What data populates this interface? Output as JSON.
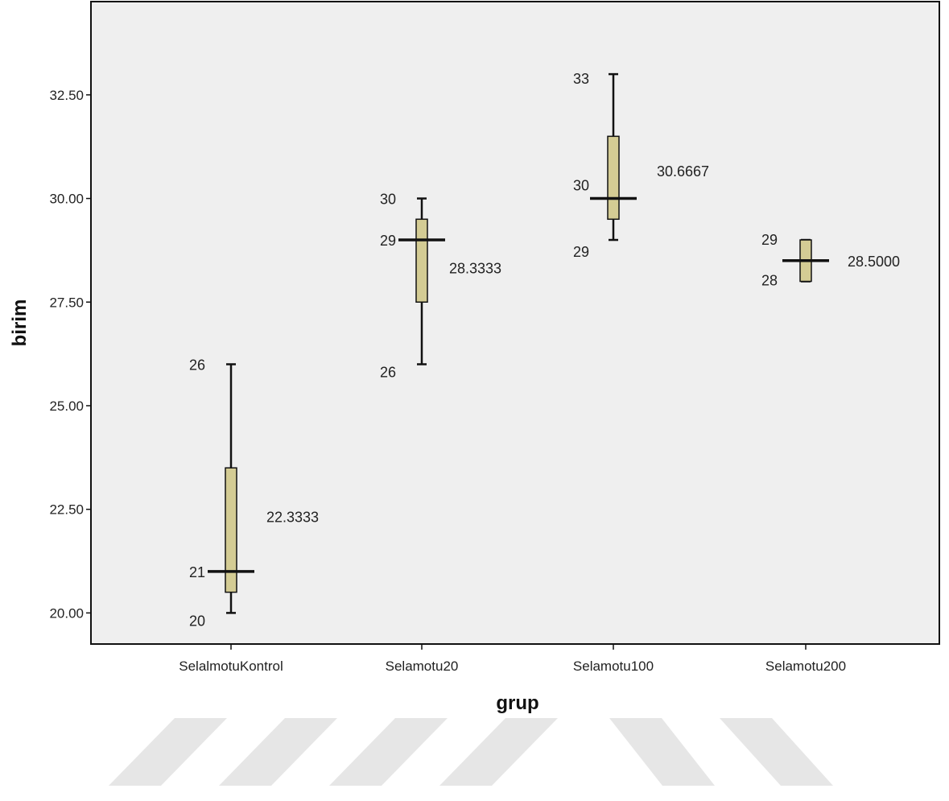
{
  "colors": {
    "plot_background": "#efefef",
    "box_fill": "#d4cc94",
    "line": "#111111",
    "watermark": "#e6e6e6"
  },
  "chart_data": {
    "type": "boxplot",
    "title": "",
    "xlabel": "grup",
    "ylabel": "birim",
    "ylim": [
      19.25,
      34.75
    ],
    "yticks": [
      "20.00",
      "22.50",
      "25.00",
      "27.50",
      "30.00",
      "32.50"
    ],
    "ytick_values": [
      20,
      22.5,
      25,
      27.5,
      30,
      32.5
    ],
    "grid": false,
    "legend": "none",
    "categories": [
      "SelalmotuKontrol",
      "Selamotu20",
      "Selamotu100",
      "Selamotu200"
    ],
    "boxes": [
      {
        "category": "SelalmotuKontrol",
        "min": 20,
        "q1": 20.5,
        "median": 21,
        "q3": 23.5,
        "max": 26,
        "mean": 22.3333
      },
      {
        "category": "Selamotu20",
        "min": 26,
        "q1": 27.5,
        "median": 29,
        "q3": 29.5,
        "max": 30,
        "mean": 28.3333
      },
      {
        "category": "Selamotu100",
        "min": 29,
        "q1": 29.5,
        "median": 30,
        "q3": 31.5,
        "max": 33,
        "mean": 30.6667
      },
      {
        "category": "Selamotu200",
        "min": 28,
        "q1": 28,
        "median": 28.5,
        "q3": 29,
        "max": 29,
        "mean": 28.5
      }
    ],
    "annotations": [
      {
        "category": "SelalmotuKontrol",
        "text": "26",
        "value": 26,
        "side": "left"
      },
      {
        "category": "SelalmotuKontrol",
        "text": "21",
        "value": 21,
        "side": "left"
      },
      {
        "category": "SelalmotuKontrol",
        "text": "20",
        "value": 20,
        "side": "left"
      },
      {
        "category": "SelalmotuKontrol",
        "text": "22.3333",
        "value": 22.3333,
        "side": "right"
      },
      {
        "category": "Selamotu20",
        "text": "30",
        "value": 30,
        "side": "left"
      },
      {
        "category": "Selamotu20",
        "text": "29",
        "value": 29,
        "side": "left"
      },
      {
        "category": "Selamotu20",
        "text": "26",
        "value": 26,
        "side": "left"
      },
      {
        "category": "Selamotu20",
        "text": "28.3333",
        "value": 28.3333,
        "side": "right"
      },
      {
        "category": "Selamotu100",
        "text": "33",
        "value": 33,
        "side": "left"
      },
      {
        "category": "Selamotu100",
        "text": "30",
        "value": 30,
        "side": "left"
      },
      {
        "category": "Selamotu100",
        "text": "29",
        "value": 29,
        "side": "left"
      },
      {
        "category": "Selamotu100",
        "text": "30.6667",
        "value": 30.6667,
        "side": "right"
      },
      {
        "category": "Selamotu200",
        "text": "29",
        "value": 29,
        "side": "left"
      },
      {
        "category": "Selamotu200",
        "text": "28",
        "value": 28,
        "side": "left"
      },
      {
        "category": "Selamotu200",
        "text": "28.5000",
        "value": 28.5,
        "side": "right"
      }
    ]
  }
}
